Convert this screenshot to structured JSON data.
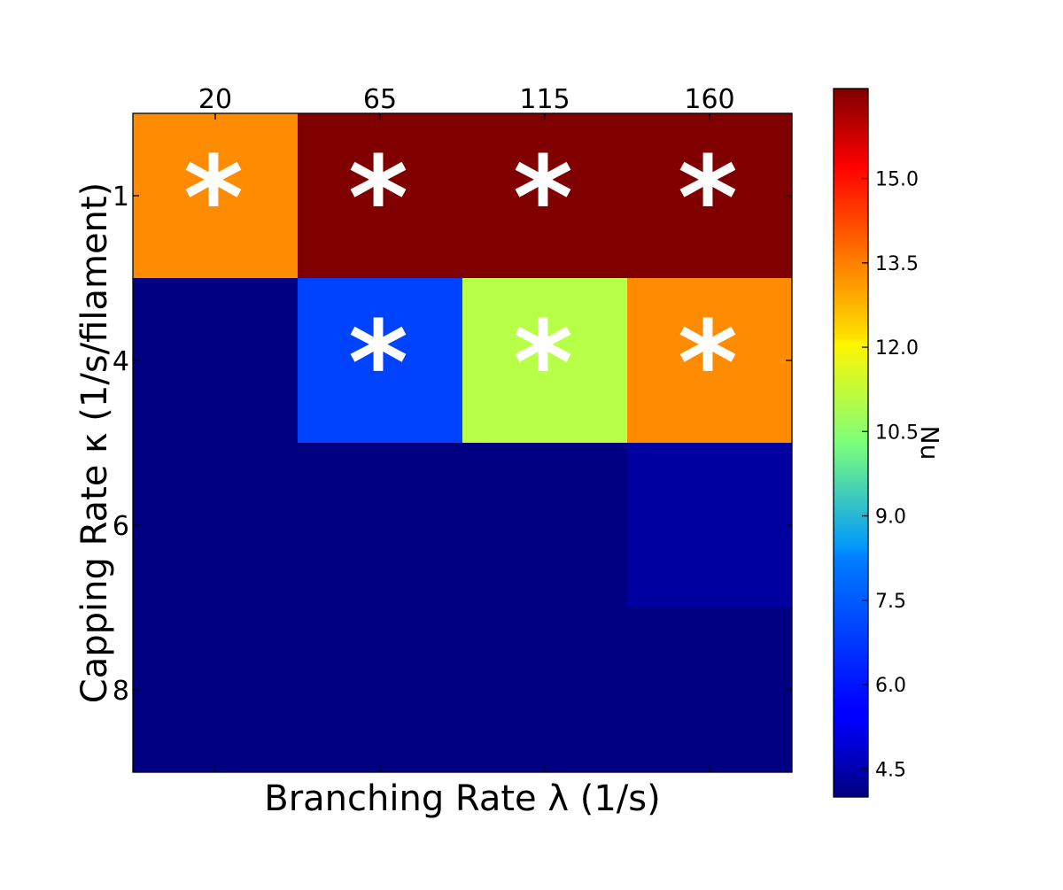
{
  "chart_data": {
    "type": "heatmap",
    "title": "",
    "xlabel": "Branching Rate λ (1/s)",
    "ylabel": "Capping Rate κ (1/s/filament)",
    "x_categories": [
      "20",
      "65",
      "115",
      "160"
    ],
    "y_categories": [
      "1",
      "4",
      "6",
      "8"
    ],
    "values": [
      [
        13.3,
        16.6,
        16.6,
        16.6
      ],
      [
        4.0,
        6.4,
        11.0,
        13.3
      ],
      [
        4.0,
        4.0,
        4.0,
        4.4
      ],
      [
        4.0,
        4.0,
        4.0,
        4.0
      ]
    ],
    "markers": [
      [
        true,
        true,
        true,
        true
      ],
      [
        false,
        true,
        true,
        true
      ],
      [
        false,
        false,
        false,
        false
      ],
      [
        false,
        false,
        false,
        false
      ]
    ],
    "marker_symbol": "*",
    "colorbar": {
      "label": "Nu",
      "colormap": "jet",
      "vmin": 4.0,
      "vmax": 16.6,
      "ticks": [
        "4.5",
        "6.0",
        "7.5",
        "9.0",
        "10.5",
        "12.0",
        "13.5",
        "15.0"
      ]
    },
    "x_tick_position": "top",
    "grid": false
  }
}
